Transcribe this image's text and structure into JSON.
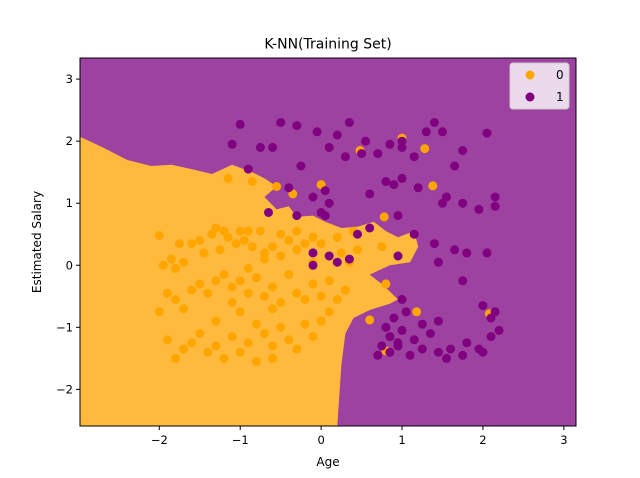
{
  "colors": {
    "region_0": "#ffb93d",
    "region_1": "#9d42a0",
    "point_0": "#ffa500",
    "point_1": "#800080"
  },
  "chart_data": {
    "type": "scatter",
    "title": "K-NN(Training Set)",
    "xlabel": "Age",
    "ylabel": "Estimated Salary",
    "xlim": [
      -2.98,
      3.15
    ],
    "ylim": [
      -2.59,
      3.34
    ],
    "xticks": [
      -2,
      -1,
      0,
      1,
      2,
      3
    ],
    "yticks": [
      -2,
      -1,
      0,
      1,
      2,
      3
    ],
    "xtick_labels": [
      "−2",
      "−1",
      "0",
      "1",
      "2",
      "3"
    ],
    "ytick_labels": [
      "−2",
      "−1",
      "0",
      "1",
      "2",
      "3"
    ],
    "legend": {
      "position": "top-right",
      "entries": [
        "0",
        "1"
      ]
    },
    "decision_boundary": [
      [
        -2.98,
        2.07
      ],
      [
        -2.7,
        1.9
      ],
      [
        -2.4,
        1.7
      ],
      [
        -2.1,
        1.6
      ],
      [
        -1.85,
        1.62
      ],
      [
        -1.6,
        1.55
      ],
      [
        -1.35,
        1.47
      ],
      [
        -1.1,
        1.62
      ],
      [
        -0.85,
        1.5
      ],
      [
        -0.7,
        1.4
      ],
      [
        -0.55,
        1.27
      ],
      [
        -0.7,
        1.1
      ],
      [
        -0.55,
        0.9
      ],
      [
        -0.4,
        0.95
      ],
      [
        -0.3,
        0.78
      ],
      [
        -0.1,
        0.8
      ],
      [
        0.05,
        0.7
      ],
      [
        0.25,
        0.6
      ],
      [
        0.45,
        0.62
      ],
      [
        0.65,
        0.7
      ],
      [
        0.8,
        0.55
      ],
      [
        0.95,
        0.45
      ],
      [
        1.15,
        0.55
      ],
      [
        1.2,
        0.3
      ],
      [
        1.1,
        0.05
      ],
      [
        0.85,
        0.0
      ],
      [
        0.6,
        -0.15
      ],
      [
        0.75,
        -0.3
      ],
      [
        0.95,
        -0.55
      ],
      [
        0.85,
        -0.62
      ],
      [
        0.6,
        -0.72
      ],
      [
        0.4,
        -0.85
      ],
      [
        0.3,
        -1.1
      ],
      [
        0.25,
        -1.6
      ],
      [
        0.22,
        -2.2
      ],
      [
        0.2,
        -2.59
      ]
    ],
    "series": [
      {
        "name": "0",
        "points": [
          [
            -2.0,
            0.48
          ],
          [
            -1.95,
            0.0
          ],
          [
            -1.85,
            0.1
          ],
          [
            -1.8,
            -0.05
          ],
          [
            -1.75,
            0.35
          ],
          [
            -1.7,
            0.05
          ],
          [
            -1.6,
            0.35
          ],
          [
            -1.5,
            0.4
          ],
          [
            -1.45,
            0.2
          ],
          [
            -1.35,
            0.5
          ],
          [
            -1.3,
            0.6
          ],
          [
            -1.25,
            0.25
          ],
          [
            -1.2,
            0.55
          ],
          [
            -1.15,
            0.45
          ],
          [
            -1.05,
            0.35
          ],
          [
            -1.0,
            0.55
          ],
          [
            -0.95,
            0.4
          ],
          [
            -0.9,
            0.55
          ],
          [
            -0.85,
            0.3
          ],
          [
            -0.75,
            0.55
          ],
          [
            -0.7,
            0.1
          ],
          [
            -0.6,
            0.3
          ],
          [
            -0.5,
            0.15
          ],
          [
            -0.4,
            0.4
          ],
          [
            -0.3,
            0.25
          ],
          [
            -0.2,
            0.35
          ],
          [
            -0.1,
            0.45
          ],
          [
            0.0,
            0.35
          ],
          [
            0.1,
            0.15
          ],
          [
            0.25,
            0.2
          ],
          [
            0.35,
            0.05
          ],
          [
            0.45,
            0.25
          ],
          [
            -1.9,
            -0.45
          ],
          [
            -1.8,
            -0.55
          ],
          [
            -1.7,
            -0.7
          ],
          [
            -1.6,
            -0.4
          ],
          [
            -1.5,
            -0.3
          ],
          [
            -1.4,
            -0.45
          ],
          [
            -1.3,
            -0.25
          ],
          [
            -1.2,
            -0.15
          ],
          [
            -1.1,
            -0.35
          ],
          [
            -1.0,
            -0.25
          ],
          [
            -0.9,
            -0.45
          ],
          [
            -0.8,
            -0.2
          ],
          [
            -0.7,
            -0.5
          ],
          [
            -0.6,
            -0.35
          ],
          [
            -0.5,
            -0.6
          ],
          [
            -0.4,
            -0.15
          ],
          [
            -0.3,
            -0.45
          ],
          [
            -0.2,
            -0.55
          ],
          [
            -0.1,
            -0.3
          ],
          [
            0.0,
            -0.5
          ],
          [
            0.1,
            -0.25
          ],
          [
            0.2,
            -0.55
          ],
          [
            0.3,
            -0.4
          ],
          [
            -2.0,
            -0.75
          ],
          [
            -1.9,
            -1.2
          ],
          [
            -1.8,
            -1.5
          ],
          [
            -1.7,
            -1.35
          ],
          [
            -1.6,
            -1.25
          ],
          [
            -1.5,
            -1.1
          ],
          [
            -1.4,
            -1.4
          ],
          [
            -1.3,
            -1.3
          ],
          [
            -1.2,
            -1.5
          ],
          [
            -1.1,
            -1.15
          ],
          [
            -1.0,
            -1.4
          ],
          [
            -0.9,
            -1.25
          ],
          [
            -0.8,
            -1.55
          ],
          [
            -0.7,
            -1.1
          ],
          [
            -0.6,
            -1.3
          ],
          [
            -0.5,
            -1.0
          ],
          [
            -0.4,
            -1.2
          ],
          [
            -0.3,
            -1.35
          ],
          [
            -0.2,
            -0.95
          ],
          [
            -0.1,
            -1.15
          ],
          [
            0.0,
            -0.9
          ],
          [
            0.1,
            -0.75
          ],
          [
            -1.3,
            -0.9
          ],
          [
            -1.0,
            -0.75
          ],
          [
            -0.8,
            -0.95
          ],
          [
            -0.6,
            -0.7
          ],
          [
            -1.1,
            -0.6
          ],
          [
            -0.9,
            -0.05
          ],
          [
            -0.7,
            0.2
          ],
          [
            -0.5,
            0.5
          ],
          [
            -0.3,
            0.55
          ],
          [
            -0.1,
            0.05
          ],
          [
            0.2,
            0.45
          ],
          [
            0.4,
            0.55
          ],
          [
            -0.6,
            -1.5
          ],
          [
            -1.15,
            1.4
          ],
          [
            -0.85,
            1.35
          ],
          [
            -0.55,
            1.27
          ],
          [
            -0.35,
            1.15
          ],
          [
            0.0,
            1.3
          ],
          [
            0.48,
            1.85
          ],
          [
            0.78,
            0.78
          ],
          [
            0.75,
            0.3
          ],
          [
            0.8,
            -0.3
          ],
          [
            0.6,
            -0.88
          ],
          [
            1.0,
            2.05
          ],
          [
            1.28,
            1.88
          ],
          [
            1.38,
            1.28
          ],
          [
            1.18,
            -0.75
          ],
          [
            2.08,
            -0.78
          ],
          [
            0.8,
            -1.38
          ]
        ]
      },
      {
        "name": "1",
        "points": [
          [
            -1.0,
            2.27
          ],
          [
            -0.75,
            1.9
          ],
          [
            -0.5,
            2.3
          ],
          [
            -0.3,
            2.25
          ],
          [
            -0.05,
            2.15
          ],
          [
            0.2,
            2.1
          ],
          [
            0.35,
            2.3
          ],
          [
            0.55,
            2.0
          ],
          [
            0.7,
            1.8
          ],
          [
            0.85,
            1.95
          ],
          [
            1.0,
            1.9
          ],
          [
            1.0,
            2.0
          ],
          [
            1.15,
            1.75
          ],
          [
            1.3,
            2.15
          ],
          [
            1.4,
            2.3
          ],
          [
            1.5,
            2.15
          ],
          [
            1.65,
            1.6
          ],
          [
            1.75,
            1.85
          ],
          [
            2.05,
            2.13
          ],
          [
            -1.1,
            1.95
          ],
          [
            -0.9,
            1.55
          ],
          [
            -0.6,
            1.9
          ],
          [
            -0.25,
            1.6
          ],
          [
            0.1,
            1.9
          ],
          [
            0.3,
            1.75
          ],
          [
            0.5,
            1.8
          ],
          [
            0.8,
            1.35
          ],
          [
            1.0,
            1.4
          ],
          [
            -0.4,
            1.25
          ],
          [
            -0.1,
            1.1
          ],
          [
            0.05,
            1.2
          ],
          [
            0.1,
            1.0
          ],
          [
            0.6,
            1.15
          ],
          [
            0.9,
            1.3
          ],
          [
            1.2,
            1.25
          ],
          [
            1.5,
            1.0
          ],
          [
            1.55,
            1.1
          ],
          [
            1.75,
            1.0
          ],
          [
            1.95,
            0.9
          ],
          [
            2.15,
            1.1
          ],
          [
            2.15,
            0.95
          ],
          [
            -0.65,
            0.85
          ],
          [
            -0.3,
            0.8
          ],
          [
            0.0,
            0.85
          ],
          [
            0.05,
            0.8
          ],
          [
            0.45,
            0.5
          ],
          [
            0.6,
            0.6
          ],
          [
            0.95,
            0.8
          ],
          [
            1.15,
            0.5
          ],
          [
            1.4,
            0.35
          ],
          [
            1.45,
            0.05
          ],
          [
            1.65,
            0.25
          ],
          [
            1.8,
            0.2
          ],
          [
            2.05,
            0.2
          ],
          [
            -0.1,
            0.2
          ],
          [
            -0.1,
            0.0
          ],
          [
            0.1,
            0.15
          ],
          [
            0.2,
            0.05
          ],
          [
            0.35,
            0.1
          ],
          [
            0.95,
            0.15
          ],
          [
            1.75,
            -0.25
          ],
          [
            2.0,
            -0.65
          ],
          [
            2.1,
            -0.85
          ],
          [
            2.15,
            -0.75
          ],
          [
            2.2,
            -1.05
          ],
          [
            2.1,
            -1.15
          ],
          [
            1.8,
            -1.25
          ],
          [
            1.6,
            -1.35
          ],
          [
            1.45,
            -0.9
          ],
          [
            1.35,
            -1.1
          ],
          [
            1.25,
            -1.35
          ],
          [
            1.1,
            -1.45
          ],
          [
            1.0,
            -1.05
          ],
          [
            0.95,
            -1.3
          ],
          [
            0.85,
            -1.15
          ],
          [
            0.8,
            -1.0
          ],
          [
            0.75,
            -1.3
          ],
          [
            0.7,
            -1.45
          ],
          [
            0.9,
            -0.85
          ],
          [
            1.05,
            -0.75
          ],
          [
            1.0,
            -0.55
          ],
          [
            2.0,
            -1.4
          ],
          [
            1.55,
            -1.5
          ],
          [
            1.45,
            -1.4
          ],
          [
            1.95,
            -1.35
          ],
          [
            1.75,
            -1.45
          ],
          [
            0.95,
            -1.25
          ],
          [
            1.15,
            -1.2
          ],
          [
            0.85,
            -1.4
          ],
          [
            1.25,
            -0.95
          ]
        ]
      }
    ]
  }
}
